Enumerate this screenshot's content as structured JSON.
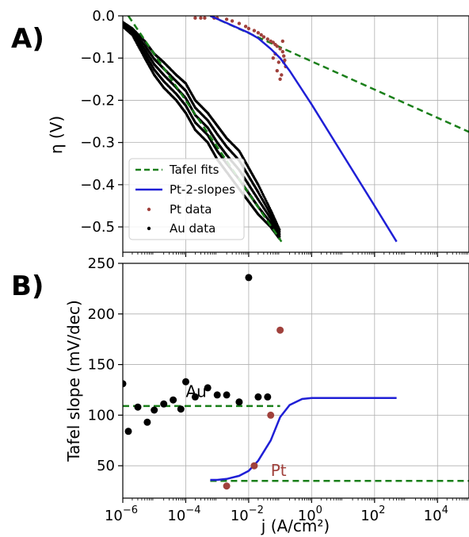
{
  "colors": {
    "tafel": "#1a7f1a",
    "pt2": "#1f1fd6",
    "pt": "#a0413c",
    "au": "#000000",
    "grid": "#b0b0b0"
  },
  "chart_data": [
    {
      "type": "scatter",
      "panel_label": "A)",
      "xscale": "log",
      "xlim": [
        1e-06,
        100000
      ],
      "ylim": [
        -0.56,
        0.0
      ],
      "ylabel": "η (V)",
      "yticks": [
        0.0,
        -0.1,
        -0.2,
        -0.3,
        -0.4,
        -0.5
      ],
      "ytick_labels": [
        "0.0",
        "−0.1",
        "−0.2",
        "−0.3",
        "−0.4",
        "−0.5"
      ],
      "grid": true,
      "legend": {
        "placement": "lower-left",
        "entries": [
          "Tafel fits",
          "Pt-2-slopes",
          "Pt data",
          "Au data"
        ]
      },
      "series": [
        {
          "name": "Tafel fits",
          "style": "dashed",
          "color": "#1a7f1a",
          "segments": [
            {
              "x": [
                1.5e-06,
                0.11
              ],
              "y": [
                0.0,
                -0.535
              ]
            },
            {
              "x": [
                0.0006,
                100000
              ],
              "y": [
                0.0,
                -0.275
              ]
            }
          ]
        },
        {
          "name": "Pt-2-slopes",
          "style": "line",
          "color": "#1f1fd6",
          "x": [
            0.0006,
            0.002,
            0.005,
            0.01,
            0.02,
            0.05,
            0.1,
            0.2,
            1,
            10,
            100,
            500
          ],
          "y": [
            0.0,
            -0.017,
            -0.03,
            -0.04,
            -0.053,
            -0.078,
            -0.1,
            -0.13,
            -0.21,
            -0.33,
            -0.45,
            -0.535
          ]
        },
        {
          "name": "Pt data",
          "style": "points",
          "color": "#a0413c",
          "x": [
            0.0002,
            0.0003,
            0.0004,
            0.0008,
            0.001,
            0.002,
            0.003,
            0.005,
            0.008,
            0.01,
            0.015,
            0.02,
            0.025,
            0.03,
            0.04,
            0.05,
            0.06,
            0.07,
            0.08,
            0.1,
            0.12,
            0.13,
            0.14,
            0.15,
            0.09,
            0.11,
            0.06,
            0.08,
            0.1,
            0.13,
            0.07,
            0.12
          ],
          "y": [
            -0.005,
            -0.005,
            -0.005,
            -0.005,
            -0.005,
            -0.008,
            -0.012,
            -0.018,
            -0.025,
            -0.03,
            -0.035,
            -0.04,
            -0.045,
            -0.05,
            -0.055,
            -0.06,
            -0.063,
            -0.068,
            -0.072,
            -0.078,
            -0.085,
            -0.095,
            -0.105,
            -0.12,
            -0.11,
            -0.14,
            -0.1,
            -0.13,
            -0.15,
            -0.11,
            -0.09,
            -0.06
          ]
        },
        {
          "name": "Au data",
          "style": "band",
          "color": "#000000",
          "x": [
            1e-06,
            2e-06,
            5e-06,
            1e-05,
            2e-05,
            5e-05,
            0.0001,
            0.0002,
            0.0005,
            0.001,
            0.002,
            0.005,
            0.01,
            0.02,
            0.05,
            0.1
          ],
          "y_upper": [
            -0.015,
            -0.03,
            -0.06,
            -0.09,
            -0.11,
            -0.14,
            -0.16,
            -0.2,
            -0.23,
            -0.26,
            -0.29,
            -0.32,
            -0.36,
            -0.4,
            -0.46,
            -0.51
          ],
          "y_lower": [
            -0.025,
            -0.045,
            -0.1,
            -0.14,
            -0.17,
            -0.2,
            -0.23,
            -0.27,
            -0.3,
            -0.34,
            -0.37,
            -0.41,
            -0.44,
            -0.47,
            -0.5,
            -0.53
          ]
        }
      ]
    },
    {
      "type": "scatter",
      "panel_label": "B)",
      "xscale": "log",
      "xlim": [
        1e-06,
        100000
      ],
      "ylim": [
        18,
        250
      ],
      "xlabel": "j (A/cm²)",
      "ylabel": "Tafel slope (mV/dec)",
      "xticks": [
        1e-06,
        0.0001,
        0.01,
        1,
        100,
        10000
      ],
      "xtick_labels": [
        {
          "base": "10",
          "exp": "−6"
        },
        {
          "base": "10",
          "exp": "−4"
        },
        {
          "base": "10",
          "exp": "−2"
        },
        {
          "base": "10",
          "exp": "0"
        },
        {
          "base": "10",
          "exp": "2"
        },
        {
          "base": "10",
          "exp": "4"
        }
      ],
      "yticks": [
        50,
        100,
        150,
        200,
        250
      ],
      "ytick_labels": [
        "50",
        "100",
        "150",
        "200",
        "250"
      ],
      "grid": true,
      "annotations": [
        {
          "text": "Au",
          "x": 0.0001,
          "y": 118,
          "color": "#000000"
        },
        {
          "text": "Pt",
          "x": 0.05,
          "y": 40,
          "color": "#a0413c"
        }
      ],
      "series": [
        {
          "name": "Au slopes",
          "style": "points",
          "color": "#000000",
          "x": [
            1e-06,
            1.5e-06,
            3e-06,
            6e-06,
            1e-05,
            2e-05,
            4e-05,
            7e-05,
            0.0001,
            0.0002,
            0.0005,
            0.001,
            0.002,
            0.005,
            0.01,
            0.02,
            0.04
          ],
          "y": [
            131,
            84,
            108,
            93,
            105,
            111,
            115,
            106,
            133,
            118,
            127,
            120,
            120,
            113,
            236,
            118,
            118
          ]
        },
        {
          "name": "Pt slopes",
          "style": "points",
          "color": "#a0413c",
          "x": [
            0.002,
            0.015,
            0.05,
            0.1
          ],
          "y": [
            30,
            50,
            100,
            184
          ]
        },
        {
          "name": "Au fit",
          "style": "dashed",
          "color": "#1a7f1a",
          "x": [
            1e-06,
            0.1
          ],
          "y": [
            109,
            109
          ]
        },
        {
          "name": "Pt fit",
          "style": "dashed",
          "color": "#1a7f1a",
          "x": [
            0.0006,
            100000
          ],
          "y": [
            35,
            35
          ]
        },
        {
          "name": "Pt-2-slopes",
          "style": "line",
          "color": "#1f1fd6",
          "x": [
            0.0006,
            0.001,
            0.002,
            0.005,
            0.01,
            0.02,
            0.05,
            0.1,
            0.2,
            0.5,
            1,
            10,
            100,
            500
          ],
          "y": [
            36,
            36,
            37,
            40,
            45,
            55,
            75,
            98,
            110,
            116,
            117,
            117,
            117,
            117
          ]
        }
      ]
    }
  ]
}
